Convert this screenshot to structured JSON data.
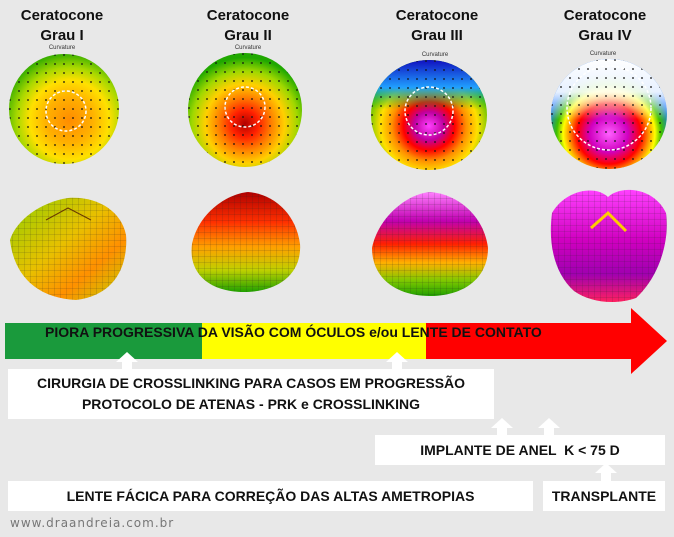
{
  "stages": [
    {
      "title_line1": "Ceratocone",
      "title_line2": "Grau I",
      "map_label": "Curvature"
    },
    {
      "title_line1": "Ceratocone",
      "title_line2": "Grau II",
      "map_label": "Curvature"
    },
    {
      "title_line1": "Ceratocone",
      "title_line2": "Grau III",
      "map_label": "Curvature"
    },
    {
      "title_line1": "Ceratocone",
      "title_line2": "Grau IV",
      "map_label": "Curvature"
    }
  ],
  "arrow": {
    "segment_1": "PIORA PROGRESSIVA",
    "segment_2": " DA VISÃO COM ÓCULOS e/ou ",
    "segment_3": "LENTE DE CONTATO",
    "colors": {
      "green": "#1a9a3c",
      "yellow": "#ffff00",
      "red": "#ff0000"
    }
  },
  "treatments": {
    "crosslinking_line1": "CIRURGIA DE CROSSLINKING PARA CASOS EM PROGRESSÃO",
    "crosslinking_line2": "PROTOCOLO DE ATENAS - PRK e CROSSLINKING",
    "ring_implant": "IMPLANTE DE ANEL  K < 75 D",
    "phakic_lens": "LENTE FÁCICA PARA CORREÇÃO DAS ALTAS AMETROPIAS",
    "transplant": "TRANSPLANTE"
  },
  "footer": {
    "website": "www.draandreia.com.br"
  }
}
